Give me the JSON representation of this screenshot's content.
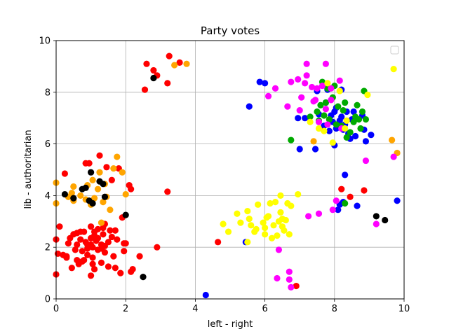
{
  "chart_data": {
    "type": "scatter",
    "title": "Party votes",
    "xlabel": "left - right",
    "ylabel": "lib - authoritarian",
    "xlim": [
      0,
      10
    ],
    "ylim": [
      0,
      10
    ],
    "xticks": [
      "0",
      "2",
      "4",
      "6",
      "8",
      "10"
    ],
    "yticks": [
      "0",
      "2",
      "4",
      "6",
      "8",
      "10"
    ],
    "grid": true,
    "legend": "top-right, empty",
    "series": [
      {
        "color": "#ff0000",
        "points": [
          [
            0.0,
            0.95
          ],
          [
            0.05,
            1.75
          ],
          [
            0.1,
            2.8
          ],
          [
            0.2,
            1.7
          ],
          [
            0.25,
            4.85
          ],
          [
            0.3,
            1.6
          ],
          [
            0.35,
            2.15
          ],
          [
            0.4,
            2.35
          ],
          [
            0.45,
            1.2
          ],
          [
            0.5,
            2.5
          ],
          [
            0.55,
            1.9
          ],
          [
            0.6,
            1.5
          ],
          [
            0.6,
            2.1
          ],
          [
            0.65,
            1.35
          ],
          [
            0.7,
            2.3
          ],
          [
            0.75,
            1.85
          ],
          [
            0.8,
            2.6
          ],
          [
            0.8,
            1.5
          ],
          [
            0.85,
            5.25
          ],
          [
            0.9,
            2.1
          ],
          [
            0.9,
            1.7
          ],
          [
            0.95,
            5.25
          ],
          [
            1.0,
            2.8
          ],
          [
            1.0,
            2.35
          ],
          [
            1.0,
            0.9
          ],
          [
            1.05,
            2.0
          ],
          [
            1.05,
            1.6
          ],
          [
            1.1,
            2.6
          ],
          [
            1.1,
            1.15
          ],
          [
            1.15,
            2.25
          ],
          [
            1.2,
            1.9
          ],
          [
            1.2,
            2.7
          ],
          [
            1.25,
            5.55
          ],
          [
            1.3,
            2.1
          ],
          [
            1.3,
            1.4
          ],
          [
            1.35,
            2.5
          ],
          [
            1.4,
            1.8
          ],
          [
            1.4,
            2.9
          ],
          [
            1.45,
            5.1
          ],
          [
            1.5,
            2.2
          ],
          [
            1.5,
            1.25
          ],
          [
            1.55,
            2.65
          ],
          [
            1.6,
            4.6
          ],
          [
            1.65,
            1.65
          ],
          [
            1.7,
            1.2
          ],
          [
            1.75,
            2.3
          ],
          [
            1.8,
            5.05
          ],
          [
            1.85,
            1.0
          ],
          [
            1.9,
            3.15
          ],
          [
            1.95,
            2.15
          ],
          [
            1.95,
            1.85
          ],
          [
            2.0,
            2.15
          ],
          [
            2.1,
            4.4
          ],
          [
            2.15,
            4.25
          ],
          [
            2.2,
            1.15
          ],
          [
            2.15,
            1.05
          ],
          [
            2.4,
            1.65
          ],
          [
            2.9,
            2.0
          ],
          [
            3.2,
            4.15
          ],
          [
            0.7,
            2.6
          ],
          [
            1.0,
            2.1
          ],
          [
            1.2,
            2.35
          ],
          [
            0.9,
            1.95
          ],
          [
            1.3,
            1.95
          ],
          [
            1.1,
            2.45
          ],
          [
            0.85,
            2.2
          ],
          [
            1.4,
            2.05
          ],
          [
            0.75,
            1.45
          ],
          [
            1.6,
            2.4
          ],
          [
            1.05,
            1.35
          ],
          [
            1.35,
            2.75
          ],
          [
            0.6,
            2.55
          ],
          [
            2.55,
            8.1
          ],
          [
            2.6,
            9.1
          ],
          [
            2.8,
            8.85
          ],
          [
            2.9,
            8.65
          ],
          [
            3.2,
            8.35
          ],
          [
            3.25,
            9.4
          ],
          [
            3.55,
            9.15
          ],
          [
            4.65,
            2.2
          ],
          [
            8.2,
            4.25
          ],
          [
            8.45,
            3.95
          ],
          [
            8.85,
            4.2
          ],
          [
            6.9,
            0.5
          ],
          [
            0.0,
            2.3
          ],
          [
            1.7,
            2.65
          ],
          [
            0.3,
            1.65
          ]
        ]
      },
      {
        "color": "#ffa500",
        "points": [
          [
            0.0,
            4.5
          ],
          [
            0.0,
            3.7
          ],
          [
            0.35,
            3.95
          ],
          [
            0.45,
            4.1
          ],
          [
            0.5,
            3.8
          ],
          [
            0.5,
            4.35
          ],
          [
            0.7,
            4.0
          ],
          [
            0.85,
            3.85
          ],
          [
            0.9,
            4.4
          ],
          [
            1.0,
            3.65
          ],
          [
            1.05,
            4.6
          ],
          [
            1.1,
            3.9
          ],
          [
            1.2,
            4.25
          ],
          [
            1.25,
            4.9
          ],
          [
            1.3,
            2.95
          ],
          [
            1.35,
            3.75
          ],
          [
            1.4,
            4.45
          ],
          [
            1.45,
            3.95
          ],
          [
            1.55,
            3.45
          ],
          [
            1.65,
            5.05
          ],
          [
            1.75,
            5.5
          ],
          [
            1.9,
            4.9
          ],
          [
            2.0,
            4.05
          ],
          [
            3.4,
            9.05
          ],
          [
            3.75,
            9.1
          ],
          [
            7.4,
            6.1
          ],
          [
            8.35,
            6.9
          ],
          [
            9.65,
            6.15
          ],
          [
            9.8,
            5.65
          ]
        ]
      },
      {
        "color": "#000000",
        "points": [
          [
            0.25,
            4.05
          ],
          [
            0.5,
            3.9
          ],
          [
            0.75,
            4.25
          ],
          [
            0.85,
            4.3
          ],
          [
            0.95,
            3.8
          ],
          [
            1.0,
            4.9
          ],
          [
            1.05,
            3.7
          ],
          [
            1.25,
            4.55
          ],
          [
            1.35,
            4.45
          ],
          [
            1.4,
            3.95
          ],
          [
            2.0,
            3.25
          ],
          [
            2.5,
            0.85
          ],
          [
            2.8,
            8.55
          ],
          [
            7.65,
            6.6
          ],
          [
            9.2,
            3.2
          ],
          [
            9.45,
            3.05
          ]
        ]
      },
      {
        "color": "#0000ff",
        "points": [
          [
            4.3,
            0.15
          ],
          [
            5.45,
            2.2
          ],
          [
            5.55,
            7.45
          ],
          [
            5.85,
            8.4
          ],
          [
            6.0,
            8.35
          ],
          [
            6.95,
            7.0
          ],
          [
            7.0,
            5.8
          ],
          [
            7.15,
            7.0
          ],
          [
            7.45,
            5.8
          ],
          [
            7.5,
            8.05
          ],
          [
            7.55,
            7.15
          ],
          [
            7.7,
            6.7
          ],
          [
            7.75,
            7.6
          ],
          [
            7.8,
            8.1
          ],
          [
            7.85,
            6.5
          ],
          [
            7.9,
            7.1
          ],
          [
            7.95,
            6.85
          ],
          [
            8.0,
            5.95
          ],
          [
            8.05,
            7.4
          ],
          [
            8.05,
            6.6
          ],
          [
            8.1,
            3.45
          ],
          [
            8.15,
            6.9
          ],
          [
            8.2,
            7.05
          ],
          [
            8.25,
            6.55
          ],
          [
            8.3,
            6.75
          ],
          [
            8.35,
            7.25
          ],
          [
            8.4,
            6.4
          ],
          [
            8.5,
            6.95
          ],
          [
            8.55,
            7.25
          ],
          [
            8.6,
            6.3
          ],
          [
            8.65,
            3.6
          ],
          [
            8.8,
            7.1
          ],
          [
            8.85,
            6.55
          ],
          [
            8.9,
            6.1
          ],
          [
            9.05,
            6.35
          ],
          [
            9.8,
            3.8
          ],
          [
            8.3,
            4.8
          ],
          [
            8.25,
            3.75
          ],
          [
            8.15,
            3.65
          ],
          [
            8.2,
            8.1
          ],
          [
            8.45,
            6.2
          ],
          [
            8.0,
            7.25
          ]
        ]
      },
      {
        "color": "#00aa00",
        "points": [
          [
            6.75,
            6.15
          ],
          [
            7.3,
            7.05
          ],
          [
            7.5,
            7.25
          ],
          [
            7.55,
            6.9
          ],
          [
            7.6,
            7.5
          ],
          [
            7.65,
            8.4
          ],
          [
            7.7,
            7.1
          ],
          [
            7.75,
            7.6
          ],
          [
            7.8,
            8.15
          ],
          [
            7.85,
            6.95
          ],
          [
            8.05,
            6.75
          ],
          [
            8.1,
            7.45
          ],
          [
            8.2,
            6.7
          ],
          [
            8.25,
            7.3
          ],
          [
            8.3,
            7.6
          ],
          [
            8.35,
            6.25
          ],
          [
            8.55,
            6.85
          ],
          [
            8.6,
            7.05
          ],
          [
            8.65,
            7.5
          ],
          [
            8.75,
            6.6
          ],
          [
            8.8,
            7.25
          ],
          [
            8.85,
            8.05
          ],
          [
            8.9,
            6.95
          ],
          [
            8.3,
            3.7
          ],
          [
            8.0,
            8.25
          ],
          [
            7.95,
            7.8
          ],
          [
            8.45,
            6.45
          ],
          [
            8.7,
            6.95
          ]
        ]
      },
      {
        "color": "#ff00ff",
        "points": [
          [
            6.1,
            7.85
          ],
          [
            6.3,
            8.15
          ],
          [
            6.35,
            0.8
          ],
          [
            6.4,
            1.9
          ],
          [
            6.65,
            7.45
          ],
          [
            6.7,
            1.05
          ],
          [
            6.7,
            0.75
          ],
          [
            6.75,
            0.45
          ],
          [
            6.75,
            8.4
          ],
          [
            6.95,
            8.5
          ],
          [
            7.0,
            7.3
          ],
          [
            7.05,
            7.8
          ],
          [
            7.15,
            8.35
          ],
          [
            7.2,
            9.1
          ],
          [
            7.2,
            8.65
          ],
          [
            7.25,
            3.2
          ],
          [
            7.35,
            8.2
          ],
          [
            7.4,
            7.65
          ],
          [
            7.5,
            8.15
          ],
          [
            7.55,
            6.85
          ],
          [
            7.55,
            3.3
          ],
          [
            7.65,
            8.25
          ],
          [
            7.75,
            7.35
          ],
          [
            7.75,
            9.1
          ],
          [
            7.8,
            6.75
          ],
          [
            7.9,
            8.15
          ],
          [
            7.9,
            7.7
          ],
          [
            7.95,
            3.45
          ],
          [
            8.05,
            3.8
          ],
          [
            8.15,
            8.45
          ],
          [
            8.2,
            6.6
          ],
          [
            8.9,
            5.35
          ],
          [
            9.2,
            2.9
          ],
          [
            9.7,
            5.5
          ],
          [
            7.45,
            7.7
          ]
        ]
      },
      {
        "color": "#ffff00",
        "points": [
          [
            4.8,
            2.9
          ],
          [
            4.95,
            2.6
          ],
          [
            5.2,
            3.3
          ],
          [
            5.3,
            2.95
          ],
          [
            5.5,
            2.2
          ],
          [
            5.5,
            3.4
          ],
          [
            5.55,
            3.1
          ],
          [
            5.6,
            2.85
          ],
          [
            5.7,
            2.6
          ],
          [
            5.75,
            2.7
          ],
          [
            5.8,
            3.65
          ],
          [
            6.0,
            2.75
          ],
          [
            6.0,
            2.5
          ],
          [
            6.1,
            3.2
          ],
          [
            6.15,
            3.7
          ],
          [
            6.2,
            2.35
          ],
          [
            6.25,
            2.85
          ],
          [
            6.3,
            3.75
          ],
          [
            6.35,
            2.45
          ],
          [
            6.4,
            3.0
          ],
          [
            6.45,
            4.0
          ],
          [
            6.5,
            2.8
          ],
          [
            6.5,
            3.1
          ],
          [
            6.55,
            2.65
          ],
          [
            6.6,
            3.05
          ],
          [
            6.65,
            3.7
          ],
          [
            6.7,
            2.5
          ],
          [
            6.75,
            3.6
          ],
          [
            6.95,
            4.05
          ],
          [
            7.3,
            6.85
          ],
          [
            7.55,
            6.6
          ],
          [
            7.7,
            6.5
          ],
          [
            7.8,
            8.35
          ],
          [
            7.95,
            6.05
          ],
          [
            8.15,
            8.05
          ],
          [
            8.3,
            6.6
          ],
          [
            8.35,
            6.9
          ],
          [
            8.95,
            7.9
          ],
          [
            9.7,
            8.9
          ],
          [
            6.05,
            3.15
          ],
          [
            5.95,
            2.95
          ],
          [
            6.45,
            3.35
          ]
        ]
      }
    ]
  }
}
